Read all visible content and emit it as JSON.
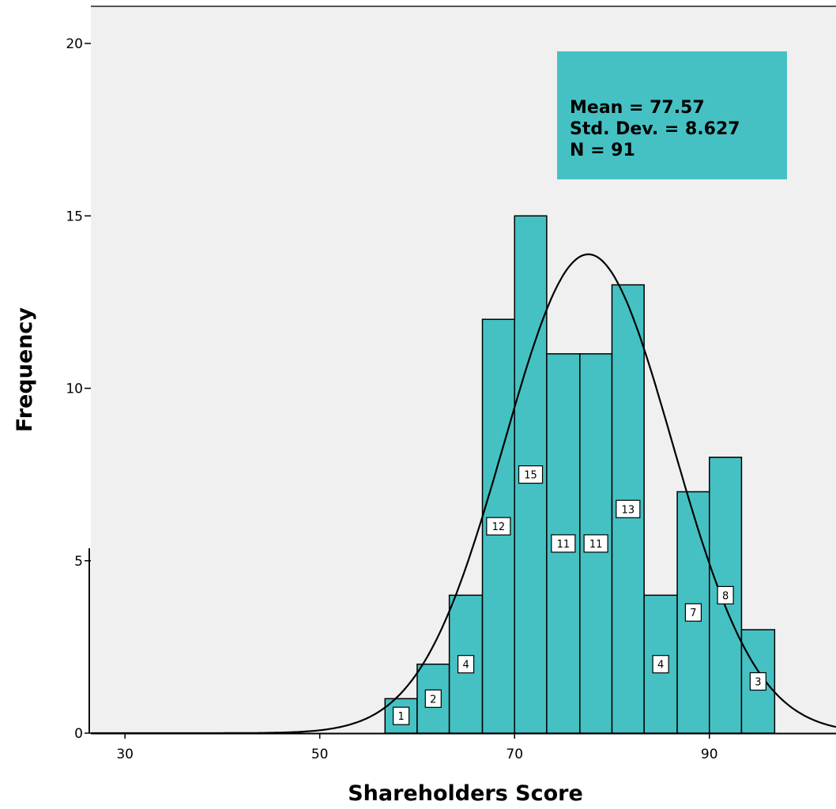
{
  "chart_data": {
    "type": "histogram",
    "xlabel": "Shareholders Score",
    "ylabel": "Frequency",
    "xlim": [
      26.5,
      103
    ],
    "ylim": [
      0,
      20.5
    ],
    "x_ticks": [
      30,
      50,
      70,
      90
    ],
    "y_ticks": [
      0,
      5,
      10,
      15,
      20
    ],
    "bars": [
      {
        "x0": 56.7,
        "x1": 60.0,
        "value": 1
      },
      {
        "x0": 60.0,
        "x1": 63.3,
        "value": 2
      },
      {
        "x0": 63.3,
        "x1": 66.7,
        "value": 4
      },
      {
        "x0": 66.7,
        "x1": 70.0,
        "value": 12
      },
      {
        "x0": 70.0,
        "x1": 73.3,
        "value": 15
      },
      {
        "x0": 73.3,
        "x1": 76.7,
        "value": 11
      },
      {
        "x0": 76.7,
        "x1": 80.0,
        "value": 11
      },
      {
        "x0": 80.0,
        "x1": 83.3,
        "value": 13
      },
      {
        "x0": 83.3,
        "x1": 86.7,
        "value": 4
      },
      {
        "x0": 86.7,
        "x1": 90.0,
        "value": 7
      },
      {
        "x0": 90.0,
        "x1": 93.3,
        "value": 8
      },
      {
        "x0": 93.3,
        "x1": 96.7,
        "value": 3
      }
    ],
    "normal_curve": {
      "mean": 77.57,
      "sd": 8.627,
      "n": 91
    },
    "stats_box": {
      "mean_text": "Mean = 77.57",
      "sd_text": "Std. Dev. = 8.627",
      "n_text": "N = 91"
    },
    "colors": {
      "bar_fill": "#45c1c3",
      "bar_stroke": "#000000",
      "plot_background": "#f0f0f0",
      "stats_box_fill": "#45c1c3"
    },
    "grid": false,
    "legend": "none"
  }
}
